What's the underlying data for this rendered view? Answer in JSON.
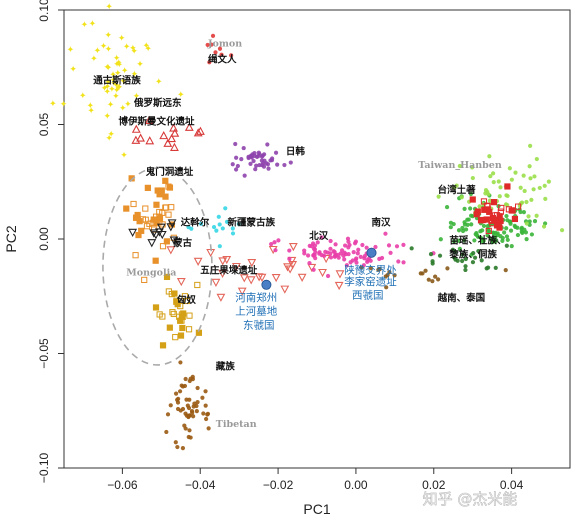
{
  "chart_data": {
    "type": "scatter",
    "xlabel": "PC1",
    "ylabel": "PC2",
    "xlim": [
      -0.075,
      0.055
    ],
    "ylim": [
      -0.1,
      0.1
    ],
    "x_ticks": [
      -0.06,
      -0.04,
      -0.02,
      0.0,
      0.02,
      0.04
    ],
    "x_tick_labels": [
      "−0.06",
      "−0.04",
      "−0.02",
      "0.00",
      "0.02",
      "0.04"
    ],
    "y_ticks": [
      -0.1,
      -0.05,
      0.0,
      0.05,
      0.1
    ],
    "y_tick_labels": [
      "−0.10",
      "−0.05",
      "0.00",
      "0.05",
      "0.10"
    ],
    "grid": false,
    "clusters": [
      {
        "name": "yellow",
        "color": "#f2e21a",
        "shape": "star",
        "center": [
          -0.062,
          0.072
        ],
        "spread": [
          0.006,
          0.014
        ],
        "count": 55
      },
      {
        "name": "red-tri",
        "color": "#d83a3a",
        "shape": "triangle",
        "center": [
          -0.05,
          0.045
        ],
        "spread": [
          0.004,
          0.004
        ],
        "count": 14
      },
      {
        "name": "jomon",
        "color": "#e23a3a",
        "shape": "circle",
        "center": [
          -0.036,
          0.082
        ],
        "spread": [
          0.002,
          0.003
        ],
        "count": 8
      },
      {
        "name": "purple",
        "color": "#8e44ad",
        "shape": "circle",
        "center": [
          -0.025,
          0.036
        ],
        "spread": [
          0.003,
          0.003
        ],
        "count": 45
      },
      {
        "name": "orange",
        "color": "#e8902a",
        "shape": "square",
        "center": [
          -0.052,
          0.01
        ],
        "spread": [
          0.004,
          0.009
        ],
        "count": 45
      },
      {
        "name": "mongolia-tri",
        "color": "#222222",
        "shape": "triangle-down",
        "center": [
          -0.051,
          0.002
        ],
        "spread": [
          0.003,
          0.003
        ],
        "count": 10
      },
      {
        "name": "cyan",
        "color": "#35d6e6",
        "shape": "circle",
        "center": [
          -0.033,
          0.006
        ],
        "spread": [
          0.004,
          0.003
        ],
        "count": 14
      },
      {
        "name": "salmon-tri",
        "color": "#e4665a",
        "shape": "triangle-down",
        "center": [
          -0.02,
          -0.013
        ],
        "spread": [
          0.012,
          0.006
        ],
        "count": 30
      },
      {
        "name": "gold",
        "color": "#d4a017",
        "shape": "square",
        "center": [
          -0.046,
          -0.032
        ],
        "spread": [
          0.003,
          0.006
        ],
        "count": 30
      },
      {
        "name": "brown",
        "color": "#9a5a12",
        "shape": "circle",
        "center": [
          -0.043,
          -0.072
        ],
        "spread": [
          0.003,
          0.008
        ],
        "count": 55
      },
      {
        "name": "pink",
        "color": "#e93ea8",
        "shape": "circle",
        "center": [
          -0.005,
          -0.006
        ],
        "spread": [
          0.008,
          0.003
        ],
        "count": 90
      },
      {
        "name": "green",
        "color": "#3ab53a",
        "shape": "circle",
        "center": [
          0.035,
          0.006
        ],
        "spread": [
          0.007,
          0.005
        ],
        "count": 110
      },
      {
        "name": "lightgreen",
        "color": "#9adf4a",
        "shape": "circle",
        "center": [
          0.038,
          0.02
        ],
        "spread": [
          0.008,
          0.008
        ],
        "count": 60
      },
      {
        "name": "red-sq",
        "color": "#e02a2a",
        "shape": "square",
        "center": [
          0.036,
          0.012
        ],
        "spread": [
          0.003,
          0.004
        ],
        "count": 35
      },
      {
        "name": "darkgreen",
        "color": "#2a7a2a",
        "shape": "circle",
        "center": [
          0.028,
          -0.008
        ],
        "spread": [
          0.006,
          0.004
        ],
        "count": 25
      },
      {
        "name": "brown-diag",
        "color": "#8a5a1a",
        "shape": "circle",
        "center": [
          0.015,
          -0.016
        ],
        "spread": [
          0.008,
          0.003
        ],
        "count": 18
      }
    ],
    "special_points": [
      {
        "x": -0.023,
        "y": -0.02,
        "color": "#4a7fc6"
      },
      {
        "x": 0.004,
        "y": -0.006,
        "color": "#4a7fc6"
      }
    ],
    "annotations": [
      {
        "text": "通古斯语族",
        "x": -0.0675,
        "y": 0.068,
        "style": "black"
      },
      {
        "text": "Jomon",
        "x": -0.038,
        "y": 0.084,
        "style": "grey"
      },
      {
        "text": "绳文人",
        "x": -0.038,
        "y": 0.077,
        "style": "black"
      },
      {
        "text": "俄罗斯远东",
        "x": -0.057,
        "y": 0.058,
        "style": "black"
      },
      {
        "text": "博伊斯曼文化遗址",
        "x": -0.061,
        "y": 0.05,
        "style": "black"
      },
      {
        "text": "日韩",
        "x": -0.018,
        "y": 0.037,
        "style": "black"
      },
      {
        "text": "鬼门洞遗址",
        "x": -0.054,
        "y": 0.028,
        "style": "black"
      },
      {
        "text": "Taiwan_Hanben",
        "x": 0.016,
        "y": 0.031,
        "style": "grey"
      },
      {
        "text": "台湾土著",
        "x": 0.021,
        "y": 0.02,
        "style": "black"
      },
      {
        "text": "达斡尔",
        "x": -0.045,
        "y": 0.006,
        "style": "black"
      },
      {
        "text": "新疆蒙古族",
        "x": -0.033,
        "y": 0.006,
        "style": "black"
      },
      {
        "text": "南汉",
        "x": 0.004,
        "y": 0.006,
        "style": "black"
      },
      {
        "text": "北汉",
        "x": -0.012,
        "y": 0.0,
        "style": "black"
      },
      {
        "text": "蒙古",
        "x": -0.047,
        "y": -0.003,
        "style": "black"
      },
      {
        "text": "苗瑶、壮族、",
        "x": 0.024,
        "y": -0.002,
        "style": "black"
      },
      {
        "text": "黎族、侗族",
        "x": 0.024,
        "y": -0.008,
        "style": "black"
      },
      {
        "text": "五庄果墚遗址",
        "x": -0.04,
        "y": -0.015,
        "style": "black"
      },
      {
        "text": "Mongolia",
        "x": -0.059,
        "y": -0.016,
        "style": "grey"
      },
      {
        "text": "陕豫交界处",
        "x": -0.003,
        "y": -0.015,
        "style": "blue"
      },
      {
        "text": "李家窑遗址",
        "x": -0.003,
        "y": -0.02,
        "style": "blue"
      },
      {
        "text": "西虢国",
        "x": -0.001,
        "y": -0.026,
        "style": "blue"
      },
      {
        "text": "越南、泰国",
        "x": 0.021,
        "y": -0.027,
        "style": "black"
      },
      {
        "text": "河南郑州",
        "x": -0.031,
        "y": -0.027,
        "style": "blue"
      },
      {
        "text": "匈奴",
        "x": -0.046,
        "y": -0.028,
        "style": "black"
      },
      {
        "text": "上河墓地",
        "x": -0.031,
        "y": -0.033,
        "style": "blue"
      },
      {
        "text": "东虢国",
        "x": -0.029,
        "y": -0.039,
        "style": "blue"
      },
      {
        "text": "藏族",
        "x": -0.036,
        "y": -0.057,
        "style": "black"
      },
      {
        "text": "Tibetan",
        "x": -0.036,
        "y": -0.082,
        "style": "grey"
      }
    ],
    "ellipse": {
      "cx": -0.051,
      "cy": -0.012,
      "rx": 0.014,
      "ry": 0.043
    }
  },
  "watermark": "知乎 @杰米能"
}
